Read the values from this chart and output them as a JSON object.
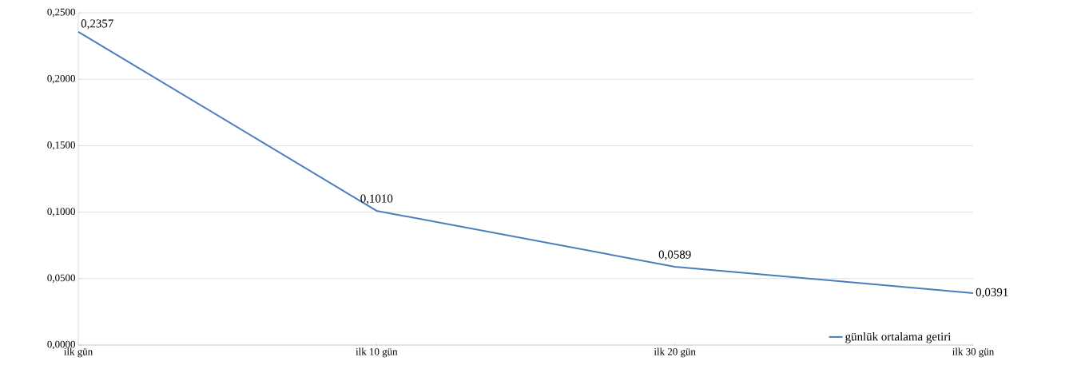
{
  "chart_data": {
    "type": "line",
    "categories": [
      "ilk gün",
      "ilk 10 gün",
      "ilk 20 gün",
      "ilk 30 gün"
    ],
    "series": [
      {
        "name": "günlük ortalama getiri",
        "color": "#4a7ebb",
        "values": [
          0.2357,
          0.101,
          0.0589,
          0.0391
        ],
        "value_labels": [
          "0,2357",
          "0,1010",
          "0,0589",
          "0,0391"
        ]
      }
    ],
    "ylim": [
      0,
      0.25
    ],
    "yticks": [
      {
        "value": 0,
        "label": "0,0000"
      },
      {
        "value": 0.05,
        "label": "0,0500"
      },
      {
        "value": 0.1,
        "label": "0,1000"
      },
      {
        "value": 0.15,
        "label": "0,1500"
      },
      {
        "value": 0.2,
        "label": "0,2000"
      },
      {
        "value": 0.25,
        "label": "0,2500"
      }
    ],
    "grid": "y",
    "legend": "bottom right",
    "marker": "none",
    "line_style": "solid"
  }
}
